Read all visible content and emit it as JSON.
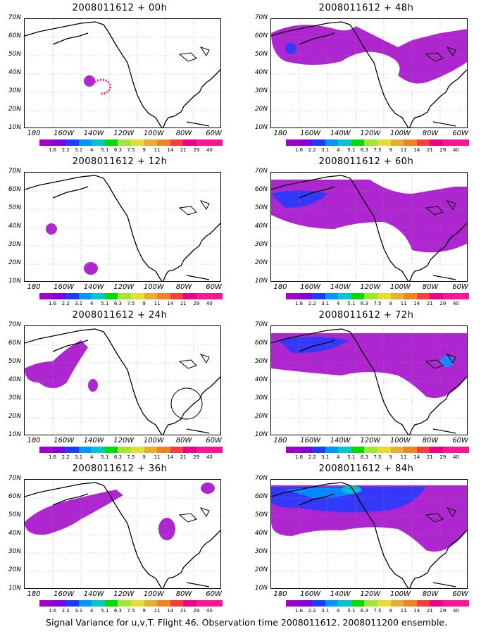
{
  "panels": [
    {
      "title": "2008011612 + 00h"
    },
    {
      "title": "2008011612 + 48h"
    },
    {
      "title": "2008011612 + 12h"
    },
    {
      "title": "2008011612 + 60h"
    },
    {
      "title": "2008011612 + 24h"
    },
    {
      "title": "2008011612 + 72h"
    },
    {
      "title": "2008011612 + 36h"
    },
    {
      "title": "2008011612 + 84h"
    }
  ],
  "lat_labels": [
    "70N",
    "60N",
    "50N",
    "40N",
    "30N",
    "20N",
    "10N"
  ],
  "lon_labels": [
    "180",
    "160W",
    "140W",
    "120W",
    "100W",
    "80W",
    "60W"
  ],
  "colorbar": {
    "labels": [
      "1.6",
      "2.2",
      "3.1",
      "4",
      "5.1",
      "6.3",
      "7.5",
      "9",
      "11",
      "14",
      "21",
      "29",
      "40"
    ],
    "colors": [
      "#a000c8",
      "#8200dc",
      "#1e3cff",
      "#0096ff",
      "#00c8c8",
      "#00dc00",
      "#a0e632",
      "#e6dc32",
      "#e6af2d",
      "#f08228",
      "#fa3c3c",
      "#f00082",
      "#ff1493"
    ]
  },
  "caption": "Signal Variance for u,v,T. Flight 46. Observation time 2008011612. 2008011200 ensemble."
}
